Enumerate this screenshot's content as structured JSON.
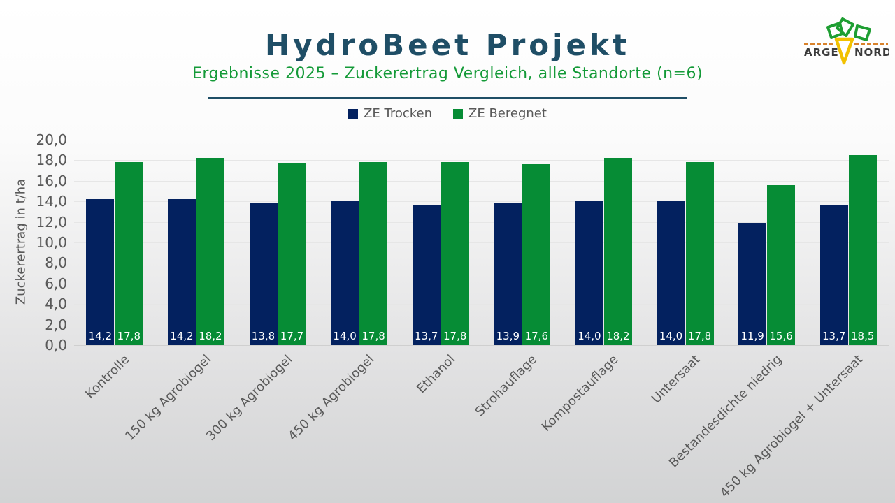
{
  "slide": {
    "title": "HydroBeet Projekt",
    "subtitle": "Ergebnisse 2025 – Zuckerertrag Vergleich, alle Standorte (n=6)"
  },
  "logo": {
    "text_left": "ARGE",
    "text_right": "NORD"
  },
  "colors": {
    "title_navy": "#1F4E66",
    "subtitle_green": "#149A38",
    "bar_navy": "#03215F",
    "bar_green": "#068C35",
    "axis_text_gray": "#595959",
    "logo_green": "#1E9E32",
    "logo_yellow": "#F2C100",
    "logo_orange": "#D9822B"
  },
  "chart_data": {
    "type": "bar",
    "title": "",
    "xlabel": "",
    "ylabel": "Zuckerertrag in t/ha",
    "ylim": [
      0,
      20
    ],
    "ytick_step": 2,
    "ytick_labels": [
      "0,0",
      "2,0",
      "4,0",
      "6,0",
      "8,0",
      "10,0",
      "12,0",
      "14,0",
      "16,0",
      "18,0",
      "20,0"
    ],
    "grid": true,
    "legend_position": "top",
    "categories": [
      "Kontrolle",
      "150 kg Agrobiogel",
      "300 kg Agrobiogel",
      "450 kg Agrobiogel",
      "Ethanol",
      "Strohauflage",
      "Kompostauflage",
      "Untersaat",
      "Bestandesdichte niedrig",
      "450 kg Agrobiogel + Untersaat"
    ],
    "series": [
      {
        "name": "ZE Trocken",
        "color": "#03215F",
        "values": [
          14.2,
          14.2,
          13.8,
          14.0,
          13.7,
          13.9,
          14.0,
          14.0,
          11.9,
          13.7
        ],
        "labels": [
          "14,2",
          "14,2",
          "13,8",
          "14,0",
          "13,7",
          "13,9",
          "14,0",
          "14,0",
          "11,9",
          "13,7"
        ]
      },
      {
        "name": "ZE Beregnet",
        "color": "#068C35",
        "values": [
          17.8,
          18.2,
          17.7,
          17.8,
          17.8,
          17.6,
          18.2,
          17.8,
          15.6,
          18.5
        ],
        "labels": [
          "17,8",
          "18,2",
          "17,7",
          "17,8",
          "17,8",
          "17,6",
          "18,2",
          "17,8",
          "15,6",
          "18,5"
        ]
      }
    ]
  }
}
